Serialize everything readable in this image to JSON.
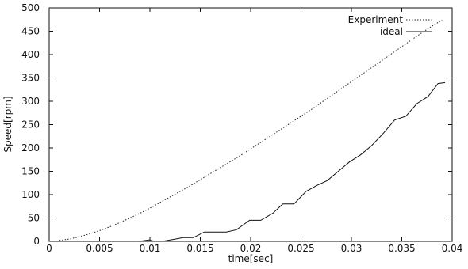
{
  "chart_data": {
    "type": "line",
    "title": "",
    "xlabel": "time[sec]",
    "ylabel": "Speed[rpm]",
    "xlim": [
      0,
      0.04
    ],
    "ylim": [
      0,
      500
    ],
    "xticks": [
      "0",
      "0.005",
      "0.01",
      "0.015",
      "0.02",
      "0.025",
      "0.03",
      "0.035",
      "0.04"
    ],
    "yticks": [
      "0",
      "50",
      "100",
      "150",
      "200",
      "250",
      "300",
      "350",
      "400",
      "450",
      "500"
    ],
    "grid": false,
    "legend_position": "top-right",
    "series": [
      {
        "name": "Experiment",
        "style": "dotted",
        "color": "#222222",
        "x": [
          0.001,
          0.002,
          0.003,
          0.004,
          0.005,
          0.006,
          0.007,
          0.008,
          0.009,
          0.01,
          0.011,
          0.012,
          0.013,
          0.014,
          0.015,
          0.016,
          0.017,
          0.018,
          0.019,
          0.02,
          0.021,
          0.022,
          0.023,
          0.024,
          0.025,
          0.026,
          0.027,
          0.028,
          0.029,
          0.03,
          0.031,
          0.032,
          0.033,
          0.034,
          0.035,
          0.036,
          0.037,
          0.038,
          0.039
        ],
        "y": [
          2,
          5,
          10,
          16,
          23,
          31,
          40,
          50,
          60,
          71,
          83,
          95,
          107,
          119,
          132,
          145,
          158,
          171,
          184,
          198,
          212,
          226,
          240,
          254,
          268,
          282,
          297,
          312,
          327,
          342,
          357,
          372,
          387,
          402,
          417,
          432,
          447,
          461,
          474
        ]
      },
      {
        "name": "ideal",
        "style": "solid",
        "color": "#111111",
        "x": [
          0.0089,
          0.0099,
          0.0105,
          0.0112,
          0.0123,
          0.0133,
          0.0143,
          0.0154,
          0.0164,
          0.0176,
          0.0186,
          0.0199,
          0.021,
          0.0222,
          0.0232,
          0.0243,
          0.0255,
          0.0266,
          0.0276,
          0.0287,
          0.0298,
          0.0309,
          0.032,
          0.0332,
          0.0343,
          0.0354,
          0.0365,
          0.0376,
          0.0386,
          0.0393
        ],
        "y": [
          0,
          3,
          0,
          0,
          4,
          8,
          8,
          20,
          20,
          20,
          25,
          45,
          45,
          60,
          80,
          80,
          107,
          120,
          130,
          150,
          170,
          185,
          205,
          232,
          260,
          268,
          295,
          310,
          338,
          340
        ]
      }
    ]
  }
}
